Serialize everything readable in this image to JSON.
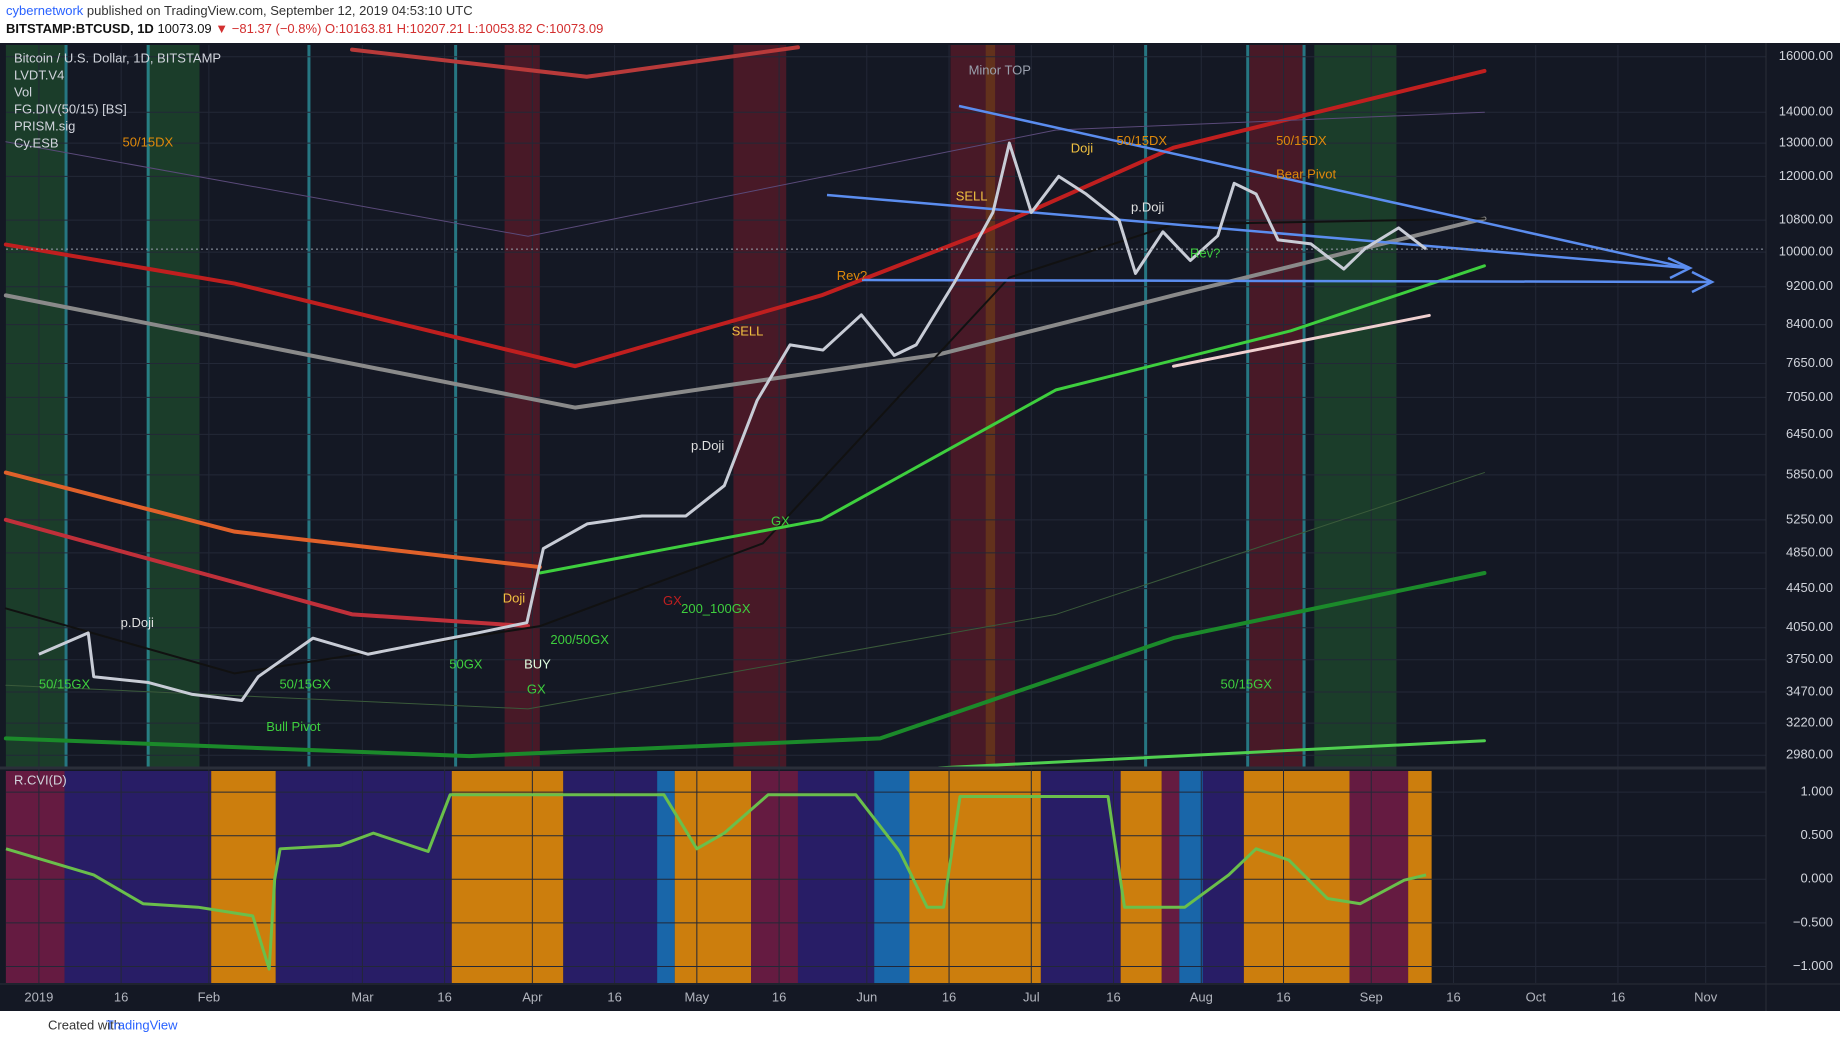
{
  "header": {
    "author": "cybernetwork",
    "published": " published on TradingView.com, September 12, 2019 04:53:10 UTC",
    "symbol": "BITSTAMP:BTCUSD, 1D",
    "last": "10073.09",
    "change": "▼ −81.37 (−0.8%)",
    "open": "O:10163.81",
    "high": "H:10207.21",
    "low": "L:10053.82",
    "close": "C:10073.09"
  },
  "indicators": [
    "LVDT.V4",
    "Vol",
    "FG.DIV(50/15) [BS]",
    "PRISM.sig",
    "Cy.ESB"
  ],
  "annotations": [
    "Minor TOP",
    "Bear Pivot",
    "Bull Pivot",
    "SELL",
    "SELL",
    "BUY",
    "GX",
    "GX",
    "GX",
    "200_100GX",
    "200/50GX",
    "50/15GX",
    "50/15GX",
    "50/15GX",
    "50/15DX",
    "50/15DX",
    "50/15DX",
    "p.Doji",
    "p.Doji",
    "p.Doji",
    "Doji",
    "Doji",
    "Rev?",
    "Rev?",
    "50GX"
  ],
  "footer": {
    "created": "Created with",
    "brand": "TradingView"
  },
  "chart_data": [
    {
      "type": "line",
      "title": "Bitcoin / U.S. Dollar, 1D, BITSTAMP",
      "log_scale": true,
      "grid": true,
      "color": "#c8ccd6",
      "x": [
        0,
        9,
        10,
        20,
        28,
        37,
        40,
        50,
        60,
        70,
        80,
        89,
        92,
        100,
        110,
        118,
        125,
        131,
        137,
        143,
        150,
        156,
        160,
        167,
        174,
        177,
        181,
        186,
        191,
        197,
        200,
        205,
        210,
        215,
        218,
        222,
        226,
        232,
        238,
        242,
        248,
        253
      ],
      "values": [
        3800,
        4000,
        3600,
        3550,
        3450,
        3400,
        3600,
        3950,
        3800,
        3900,
        4000,
        4100,
        4900,
        5200,
        5300,
        5300,
        5700,
        7000,
        8000,
        7900,
        8600,
        7800,
        8000,
        9300,
        11000,
        13000,
        11000,
        12000,
        11500,
        10800,
        9500,
        10500,
        9800,
        10400,
        11800,
        11500,
        10300,
        10200,
        9600,
        10100,
        10600,
        10073
      ],
      "xlim": [
        -6,
        315
      ],
      "xticks": [
        {
          "value": 0,
          "label": "2019"
        },
        {
          "value": 15,
          "label": "16"
        },
        {
          "value": 31,
          "label": "Feb"
        },
        {
          "value": 59,
          "label": "Mar"
        },
        {
          "value": 74,
          "label": "16"
        },
        {
          "value": 90,
          "label": "Apr"
        },
        {
          "value": 105,
          "label": "16"
        },
        {
          "value": 120,
          "label": "May"
        },
        {
          "value": 135,
          "label": "16"
        },
        {
          "value": 151,
          "label": "Jun"
        },
        {
          "value": 166,
          "label": "16"
        },
        {
          "value": 181,
          "label": "Jul"
        },
        {
          "value": 196,
          "label": "16"
        },
        {
          "value": 212,
          "label": "Aug"
        },
        {
          "value": 227,
          "label": "16"
        },
        {
          "value": 243,
          "label": "Sep"
        },
        {
          "value": 258,
          "label": "16"
        },
        {
          "value": 273,
          "label": "Oct"
        },
        {
          "value": 288,
          "label": "16"
        },
        {
          "value": 304,
          "label": "Nov"
        }
      ],
      "ylim": [
        2897,
        16460
      ],
      "yticks": [
        {
          "value": 16000,
          "label": "16000.00"
        },
        {
          "value": 14000,
          "label": "14000.00"
        },
        {
          "value": 13000,
          "label": "13000.00"
        },
        {
          "value": 12000,
          "label": "12000.00"
        },
        {
          "value": 10800,
          "label": "10800.00"
        },
        {
          "value": 10000,
          "label": "10000.00"
        },
        {
          "value": 9200,
          "label": "9200.00"
        },
        {
          "value": 8400,
          "label": "8400.00"
        },
        {
          "value": 7650,
          "label": "7650.00"
        },
        {
          "value": 7050,
          "label": "7050.00"
        },
        {
          "value": 6450,
          "label": "6450.00"
        },
        {
          "value": 5850,
          "label": "5850.00"
        },
        {
          "value": 5250,
          "label": "5250.00"
        },
        {
          "value": 4850,
          "label": "4850.00"
        },
        {
          "value": 4450,
          "label": "4450.00"
        },
        {
          "value": 4050,
          "label": "4050.00"
        },
        {
          "value": 3750,
          "label": "3750.00"
        },
        {
          "value": 3470,
          "label": "3470.00"
        },
        {
          "value": 3220,
          "label": "3220.00"
        },
        {
          "value": 2980,
          "label": "2980.00"
        }
      ]
    },
    {
      "type": "line",
      "title": "R.CVI(D)",
      "color": "#6abf4b",
      "x": [
        -6,
        10,
        19,
        29,
        39,
        42,
        43,
        44,
        55,
        61,
        71,
        75,
        114,
        120,
        125,
        133,
        149,
        157,
        162,
        165,
        168,
        195,
        198,
        209,
        217,
        222,
        228,
        235,
        241,
        249,
        253
      ],
      "values": [
        0.35,
        0.05,
        -0.28,
        -0.32,
        -0.42,
        -1.03,
        0,
        0.35,
        0.39,
        0.53,
        0.32,
        0.97,
        0.97,
        0.35,
        0.53,
        0.97,
        0.97,
        0.32,
        -0.32,
        -0.32,
        0.95,
        0.95,
        -0.32,
        -0.32,
        0.05,
        0.35,
        0.22,
        -0.22,
        -0.28,
        -0.01,
        0.05
      ],
      "ylim": [
        -1.19,
        1.243
      ],
      "yticks": [
        {
          "value": 1,
          "label": "1.000"
        },
        {
          "value": 0.5,
          "label": "0.500"
        },
        {
          "value": 0,
          "label": "0.000"
        },
        {
          "value": -0.5,
          "label": "−0.500"
        },
        {
          "value": -1,
          "label": "−1.000"
        }
      ]
    }
  ]
}
